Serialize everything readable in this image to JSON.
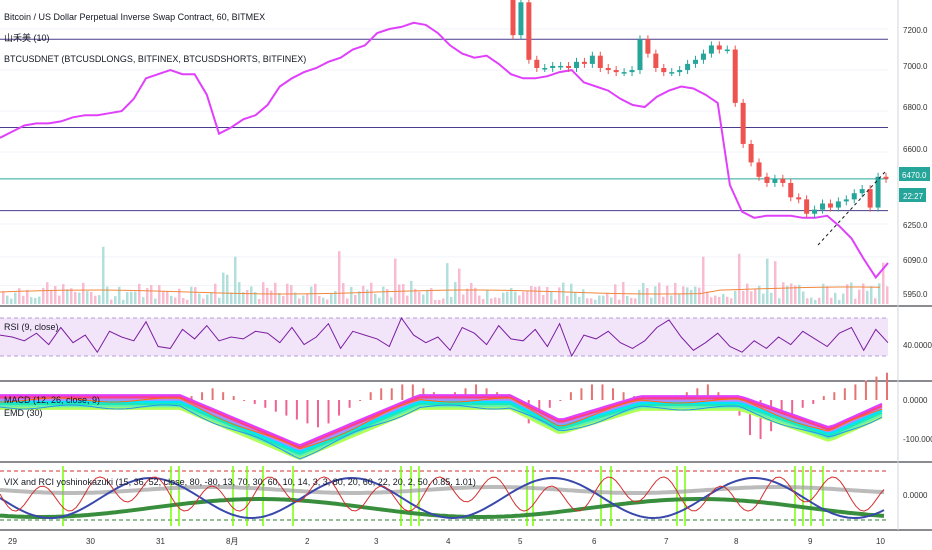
{
  "chart_data": {
    "type": "line",
    "panes": {
      "price": {
        "title": "Bitcoin / US Dollar Perpetual Inverse Swap Contract, 60, BITMEX",
        "overlay_labels": [
          "山禾美 (10)",
          "BTCUSDNET (BTCUSDLONGS, BITFINEX, BTCUSDSHORTS, BITFINEX)"
        ],
        "y_ticks": [
          "7200.0",
          "7000.0",
          "6800.0",
          "6600.0",
          "6250.0",
          "6090.0",
          "5950.0"
        ],
        "current_price": "6470.0",
        "countdown": "22:27",
        "horizontal_levels": [
          7150,
          6720,
          6470,
          6315
        ]
      },
      "rsi": {
        "label": "RSI (9, close)",
        "y_ticks": [
          "40.0000"
        ]
      },
      "macd": {
        "label": "MACD (12, 26, close, 9)",
        "label2": "EMD (30)",
        "y_ticks": [
          "0.0000",
          "-100.0000"
        ]
      },
      "vix": {
        "label": "VIX and RCI yoshinokazuki (15, 36, 52, close, 80, -80, 13, 70, 30, 60, 10, 14, 3, 3, 80, 20, 60, 22, 20, 2, 50, 0.85, 1.01)",
        "y_ticks": [
          "0.0000"
        ]
      }
    },
    "x_ticks": [
      "29",
      "30",
      "31",
      "8月",
      "2",
      "3",
      "4",
      "5",
      "6",
      "7",
      "8",
      "9",
      "10"
    ],
    "series": {
      "pink_line": [
        6670,
        6700,
        6730,
        6740,
        6740,
        6750,
        6770,
        6780,
        6780,
        6790,
        6800,
        6860,
        6960,
        6980,
        7000,
        6980,
        6980,
        6880,
        6690,
        6720,
        6760,
        6780,
        6830,
        6920,
        6960,
        6990,
        7010,
        7040,
        7060,
        7100,
        7120,
        7180,
        7200,
        7210,
        7230,
        7220,
        7180,
        7120,
        7080,
        7060,
        7070,
        7030,
        6980,
        6960,
        6960,
        6970,
        6990,
        7000,
        6940,
        6920,
        6900,
        6860,
        6830,
        6820,
        6870,
        6900,
        6920,
        6910,
        6880,
        6840,
        6440,
        6310,
        6280,
        6290,
        6290,
        6290,
        6280,
        6280,
        6290,
        6240,
        6180,
        6080,
        5990,
        6060
      ],
      "close": [
        7170,
        7330,
        7050,
        7010,
        7010,
        7020,
        7020,
        7010,
        7040,
        7030,
        7070,
        7010,
        7000,
        6990,
        6990,
        7000,
        7150,
        7080,
        7010,
        6990,
        6990,
        7000,
        7030,
        7050,
        7080,
        7120,
        7100,
        7100,
        6840,
        6640,
        6550,
        6480,
        6450,
        6470,
        6450,
        6380,
        6370,
        6300,
        6320,
        6350,
        6330,
        6360,
        6370,
        6400,
        6420,
        6330,
        6480,
        6470
      ],
      "rsi": [
        52,
        50,
        46,
        54,
        42,
        60,
        44,
        52,
        34,
        56,
        50,
        46,
        66,
        40,
        38,
        58,
        48,
        62,
        46,
        50,
        48,
        56,
        54,
        44,
        60,
        42,
        50,
        64,
        38,
        56,
        52,
        48,
        40,
        70,
        52,
        44,
        50,
        36,
        60,
        54,
        42,
        62,
        48,
        46,
        58,
        40,
        64,
        30,
        52,
        48,
        56,
        44,
        38,
        46,
        60,
        68,
        50,
        36,
        44,
        54,
        40,
        34,
        46,
        38,
        50,
        42,
        56,
        48,
        40,
        54,
        60,
        36,
        58,
        44
      ],
      "macd_hist": [
        10,
        10,
        20,
        30,
        20,
        10,
        0,
        -10,
        -20,
        -30,
        -40,
        -50,
        -60,
        -70,
        -60,
        -40,
        -20,
        0,
        20,
        30,
        30,
        40,
        40,
        30,
        20,
        10,
        20,
        30,
        40,
        30,
        20,
        10,
        -20,
        -60,
        -40,
        -20,
        0,
        20,
        30,
        40,
        40,
        30,
        20,
        10,
        0,
        -10,
        -20,
        10,
        20,
        30,
        40,
        20,
        0,
        -40,
        -90,
        -100,
        -80,
        -60,
        -40,
        -20,
        -10,
        10,
        20,
        30,
        40,
        50,
        60,
        70
      ]
    }
  }
}
